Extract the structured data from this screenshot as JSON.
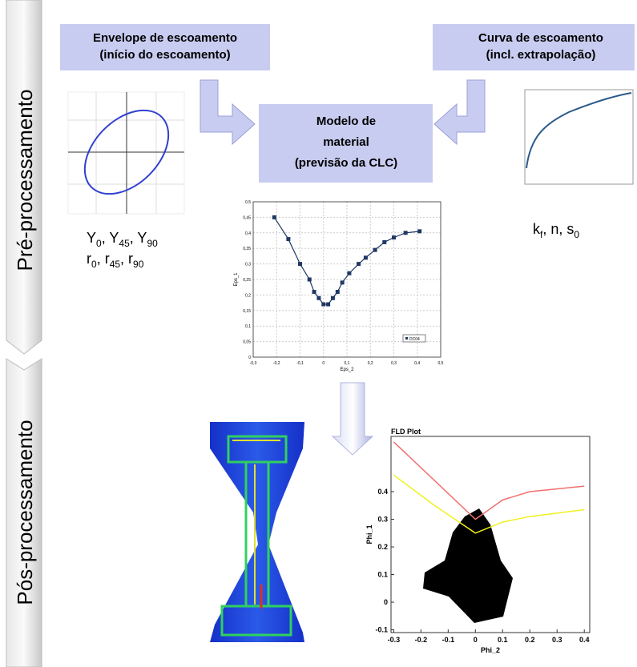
{
  "sidebar": {
    "pre": "Pré-processamento",
    "post": "Pós-processamento"
  },
  "boxes": {
    "envelope": [
      "Envelope de escoamento",
      "(início do escoamento)"
    ],
    "curve": [
      "Curva de escoamento",
      "(incl. extrapolação)"
    ],
    "model": [
      "Modelo de",
      "material",
      "(previsão da CLC)"
    ]
  },
  "params_left": [
    [
      "Y",
      "0",
      ", Y",
      "45",
      ", Y",
      "90"
    ],
    [
      "r",
      "0",
      ", r",
      "45",
      ", r",
      "90"
    ]
  ],
  "params_right": [
    [
      "k",
      "f",
      ", n, s",
      "0"
    ]
  ],
  "flc_chart": {
    "x_label": "Eps_2",
    "y_label": "Eps_1",
    "legend": "DC04",
    "color": "#1f3864",
    "xlim": [
      -0.3,
      0.5
    ],
    "ylim": [
      0,
      0.5
    ],
    "xticks": [
      {
        "value": -0.3,
        "label": "-0,3"
      },
      {
        "value": -0.2,
        "label": "-0,2"
      },
      {
        "value": -0.1,
        "label": "-0,1"
      },
      0,
      {
        "value": 0.1,
        "label": "0,1"
      },
      {
        "value": 0.2,
        "label": "0,2"
      },
      {
        "value": 0.3,
        "label": "0,3"
      },
      {
        "value": 0.4,
        "label": "0,4"
      },
      {
        "value": 0.5,
        "label": "0,5"
      }
    ],
    "yticks": [
      0,
      {
        "value": 0.05,
        "label": "0,05"
      },
      {
        "value": 0.1,
        "label": "0,1"
      },
      {
        "value": 0.15,
        "label": "0,15"
      },
      {
        "value": 0.2,
        "label": "0,2"
      },
      {
        "value": 0.25,
        "label": "0,25"
      },
      {
        "value": 0.3,
        "label": "0,3"
      },
      {
        "value": 0.35,
        "label": "0,35"
      },
      {
        "value": 0.4,
        "label": "0,4"
      },
      {
        "value": 0.45,
        "label": "0,45"
      },
      {
        "value": 0.5,
        "label": "0,5"
      }
    ],
    "x": [
      -0.21,
      -0.15,
      -0.1,
      -0.06,
      -0.04,
      -0.02,
      0.0,
      0.02,
      0.04,
      0.06,
      0.08,
      0.11,
      0.15,
      0.18,
      0.22,
      0.26,
      0.3,
      0.35,
      0.41
    ],
    "y": [
      0.45,
      0.38,
      0.3,
      0.25,
      0.21,
      0.19,
      0.17,
      0.17,
      0.19,
      0.21,
      0.24,
      0.27,
      0.3,
      0.32,
      0.345,
      0.37,
      0.385,
      0.4,
      0.405
    ]
  },
  "fld_chart": {
    "title": "FLD Plot",
    "x_label": "Phi_2",
    "y_label": "Phi_1",
    "xlim": [
      -0.31,
      0.42
    ],
    "ylim": [
      -0.11,
      0.6
    ],
    "xticks": [
      -0.3,
      -0.2,
      -0.1,
      0,
      0.1,
      0.2,
      0.3,
      0.4
    ],
    "yticks": [
      -0.1,
      0,
      0.1,
      0.2,
      0.3,
      0.4
    ],
    "series": [
      {
        "color": "#f07070",
        "x": [
          -0.3,
          -0.15,
          0,
          0.1,
          0.2,
          0.4
        ],
        "y": [
          0.58,
          0.44,
          0.3,
          0.37,
          0.4,
          0.42
        ]
      },
      {
        "color": "#f0f020",
        "x": [
          -0.3,
          -0.15,
          0,
          0.1,
          0.2,
          0.4
        ],
        "y": [
          0.46,
          0.35,
          0.25,
          0.29,
          0.31,
          0.335
        ]
      }
    ]
  }
}
